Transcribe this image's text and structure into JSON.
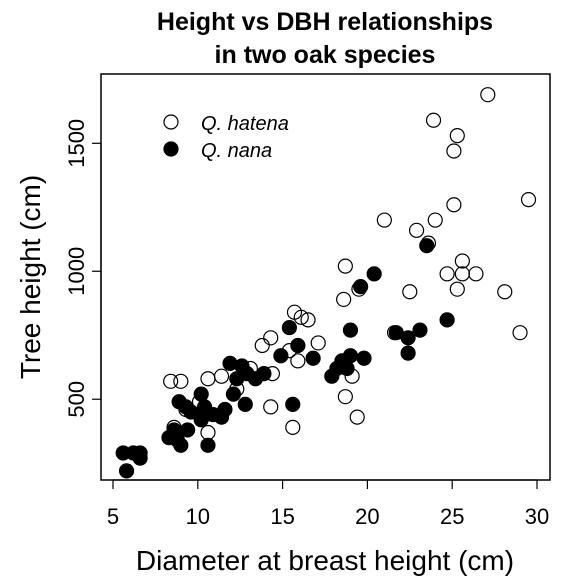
{
  "chart_data": {
    "type": "scatter",
    "title_lines": [
      "Height vs DBH relationships",
      "in two oak species"
    ],
    "xlabel": "Diameter at breast height (cm)",
    "ylabel": "Tree height (cm)",
    "xlim": [
      5,
      30
    ],
    "ylim": [
      200,
      1720
    ],
    "xticks": [
      5,
      10,
      15,
      20,
      25,
      30
    ],
    "yticks": [
      500,
      1000,
      1500
    ],
    "grid": false,
    "legend_position": "top-left",
    "series": [
      {
        "name": "Q. hatena",
        "marker": "open-circle",
        "color": "#000000",
        "points": [
          [
            8.4,
            570
          ],
          [
            9.0,
            570
          ],
          [
            8.6,
            390
          ],
          [
            9.3,
            460
          ],
          [
            10.1,
            490
          ],
          [
            10.6,
            580
          ],
          [
            10.6,
            370
          ],
          [
            11.4,
            590
          ],
          [
            12.3,
            540
          ],
          [
            13.1,
            620
          ],
          [
            13.8,
            710
          ],
          [
            14.3,
            740
          ],
          [
            14.4,
            600
          ],
          [
            14.3,
            470
          ],
          [
            15.6,
            390
          ],
          [
            15.4,
            690
          ],
          [
            15.7,
            840
          ],
          [
            16.1,
            820
          ],
          [
            15.9,
            650
          ],
          [
            16.5,
            810
          ],
          [
            17.1,
            720
          ],
          [
            18.6,
            890
          ],
          [
            18.7,
            1020
          ],
          [
            18.7,
            510
          ],
          [
            19.1,
            590
          ],
          [
            19.4,
            430
          ],
          [
            19.5,
            930
          ],
          [
            21.0,
            1200
          ],
          [
            21.6,
            760
          ],
          [
            22.5,
            920
          ],
          [
            22.9,
            1160
          ],
          [
            23.6,
            1110
          ],
          [
            24.0,
            1200
          ],
          [
            23.9,
            1590
          ],
          [
            24.7,
            990
          ],
          [
            25.1,
            1260
          ],
          [
            25.1,
            1470
          ],
          [
            25.3,
            1530
          ],
          [
            25.3,
            930
          ],
          [
            25.6,
            1040
          ],
          [
            25.6,
            990
          ],
          [
            26.4,
            990
          ],
          [
            27.1,
            1690
          ],
          [
            28.1,
            920
          ],
          [
            29.0,
            760
          ],
          [
            29.5,
            1280
          ]
        ]
      },
      {
        "name": "Q. nana",
        "marker": "filled-circle",
        "color": "#000000",
        "points": [
          [
            5.6,
            290
          ],
          [
            5.8,
            220
          ],
          [
            6.2,
            290
          ],
          [
            6.6,
            290
          ],
          [
            6.6,
            270
          ],
          [
            8.3,
            350
          ],
          [
            8.6,
            380
          ],
          [
            8.8,
            340
          ],
          [
            9.0,
            320
          ],
          [
            8.9,
            490
          ],
          [
            9.3,
            470
          ],
          [
            9.6,
            450
          ],
          [
            9.4,
            380
          ],
          [
            10.2,
            520
          ],
          [
            10.3,
            440
          ],
          [
            10.2,
            420
          ],
          [
            10.4,
            470
          ],
          [
            10.6,
            320
          ],
          [
            10.9,
            440
          ],
          [
            11.4,
            430
          ],
          [
            11.6,
            460
          ],
          [
            11.9,
            640
          ],
          [
            12.1,
            520
          ],
          [
            12.3,
            580
          ],
          [
            12.6,
            630
          ],
          [
            12.8,
            480
          ],
          [
            12.9,
            600
          ],
          [
            13.4,
            580
          ],
          [
            13.9,
            600
          ],
          [
            14.9,
            670
          ],
          [
            15.4,
            780
          ],
          [
            15.6,
            480
          ],
          [
            15.9,
            710
          ],
          [
            16.8,
            660
          ],
          [
            17.9,
            590
          ],
          [
            18.2,
            620
          ],
          [
            18.5,
            650
          ],
          [
            18.8,
            620
          ],
          [
            19.0,
            670
          ],
          [
            19.0,
            770
          ],
          [
            19.8,
            660
          ],
          [
            19.6,
            940
          ],
          [
            20.4,
            990
          ],
          [
            21.7,
            760
          ],
          [
            22.4,
            740
          ],
          [
            22.4,
            680
          ],
          [
            23.1,
            770
          ],
          [
            23.5,
            1100
          ],
          [
            24.7,
            810
          ]
        ]
      }
    ]
  }
}
